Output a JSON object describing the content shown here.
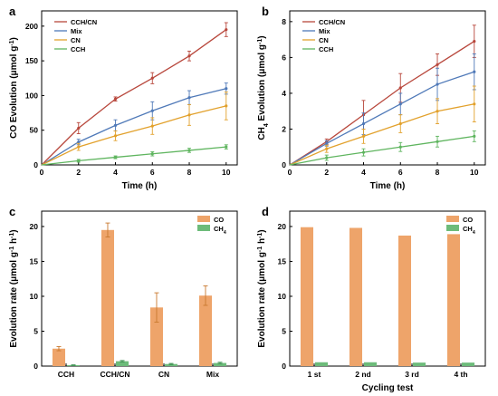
{
  "figure": {
    "panel_labels": [
      "a",
      "b",
      "c",
      "d"
    ]
  },
  "chart_data": [
    {
      "id": "a",
      "type": "line",
      "xlabel": "Time (h)",
      "ylabel": [
        "CO Evolution (μmol g",
        "-1",
        ")"
      ],
      "x": [
        0,
        2,
        4,
        6,
        8,
        10
      ],
      "xticks": [
        "0",
        "2",
        "4",
        "6",
        "8",
        "10"
      ],
      "yticks": [
        "0",
        "50",
        "100",
        "150",
        "200"
      ],
      "xlim": [
        0,
        10.6
      ],
      "ylim": [
        0,
        222
      ],
      "legend": "top-left",
      "grid": false,
      "series": [
        {
          "name": "CCH/CN",
          "color": "#b8473c",
          "values": [
            0,
            53,
            95,
            125,
            157,
            195
          ],
          "err": [
            0,
            8,
            3,
            8,
            7,
            10
          ]
        },
        {
          "name": "Mix",
          "color": "#4f79b8",
          "values": [
            0,
            33,
            57,
            78,
            97,
            110
          ],
          "err": [
            0,
            4,
            8,
            13,
            10,
            8
          ]
        },
        {
          "name": "CN",
          "color": "#e2a12c",
          "values": [
            0,
            26,
            42,
            56,
            72,
            85
          ],
          "err": [
            0,
            5,
            7,
            12,
            15,
            20
          ]
        },
        {
          "name": "CCH",
          "color": "#5fb55f",
          "values": [
            0,
            6,
            11,
            16,
            21,
            26
          ],
          "err": [
            0,
            2,
            2,
            3,
            3,
            3
          ]
        }
      ]
    },
    {
      "id": "b",
      "type": "line",
      "xlabel": "Time (h)",
      "ylabel": [
        "CH",
        "4",
        " Evolution (μmol g",
        "-1",
        ")"
      ],
      "x": [
        0,
        2,
        4,
        6,
        8,
        10
      ],
      "xticks": [
        "0",
        "2",
        "4",
        "6",
        "8",
        "10"
      ],
      "yticks": [
        "0",
        "2",
        "4",
        "6",
        "8"
      ],
      "xlim": [
        0,
        10.6
      ],
      "ylim": [
        0,
        8.6
      ],
      "legend": "top-left",
      "grid": false,
      "series": [
        {
          "name": "CCH/CN",
          "color": "#b8473c",
          "values": [
            0,
            1.3,
            2.8,
            4.3,
            5.6,
            6.9
          ],
          "err": [
            0,
            0.15,
            0.8,
            0.8,
            0.6,
            0.9
          ]
        },
        {
          "name": "Mix",
          "color": "#4f79b8",
          "values": [
            0,
            1.2,
            2.3,
            3.4,
            4.5,
            5.2
          ],
          "err": [
            0,
            0.15,
            0.6,
            0.6,
            0.9,
            1.0
          ]
        },
        {
          "name": "CN",
          "color": "#e2a12c",
          "values": [
            0,
            0.9,
            1.6,
            2.3,
            3.0,
            3.4
          ],
          "err": [
            0,
            0.2,
            0.4,
            0.5,
            0.7,
            1.0
          ]
        },
        {
          "name": "CCH",
          "color": "#5fb55f",
          "values": [
            0,
            0.4,
            0.7,
            1.0,
            1.3,
            1.6
          ],
          "err": [
            0,
            0.15,
            0.2,
            0.25,
            0.3,
            0.3
          ]
        }
      ]
    },
    {
      "id": "c",
      "type": "bar",
      "xlabel": "",
      "ylabel": [
        "Evolution rate (μmol g",
        "-1",
        " h",
        "-1",
        ")"
      ],
      "categories": [
        "CCH",
        "CCH/CN",
        "CN",
        "Mix"
      ],
      "yticks": [
        "0",
        "5",
        "10",
        "15",
        "20"
      ],
      "ylim": [
        0,
        22.2
      ],
      "legend": "top-right",
      "grid": false,
      "series": [
        {
          "name": "CO",
          "color": "#eea46a",
          "values": [
            2.5,
            19.5,
            8.4,
            10.1
          ],
          "err": [
            0.3,
            1.0,
            2.1,
            1.4
          ]
        },
        {
          "name": [
            "CH",
            "4"
          ],
          "color": "#6dbb7a",
          "values": [
            0.13,
            0.7,
            0.3,
            0.45
          ],
          "err": [
            0.05,
            0.1,
            0.08,
            0.1
          ]
        }
      ]
    },
    {
      "id": "d",
      "type": "bar",
      "xlabel": "Cycling test",
      "ylabel": [
        "Evolution rate (μmol g",
        "-1",
        " h",
        "-1",
        ")"
      ],
      "categories": [
        "1 st",
        "2 nd",
        "3 rd",
        "4 th"
      ],
      "yticks": [
        "0",
        "5",
        "10",
        "15",
        "20"
      ],
      "ylim": [
        0,
        22.2
      ],
      "legend": "top-right",
      "grid": false,
      "series": [
        {
          "name": "CO",
          "color": "#eea46a",
          "values": [
            19.9,
            19.8,
            18.7,
            18.9
          ]
        },
        {
          "name": [
            "CH",
            "4"
          ],
          "color": "#6dbb7a",
          "values": [
            0.55,
            0.55,
            0.5,
            0.5
          ]
        }
      ]
    }
  ]
}
